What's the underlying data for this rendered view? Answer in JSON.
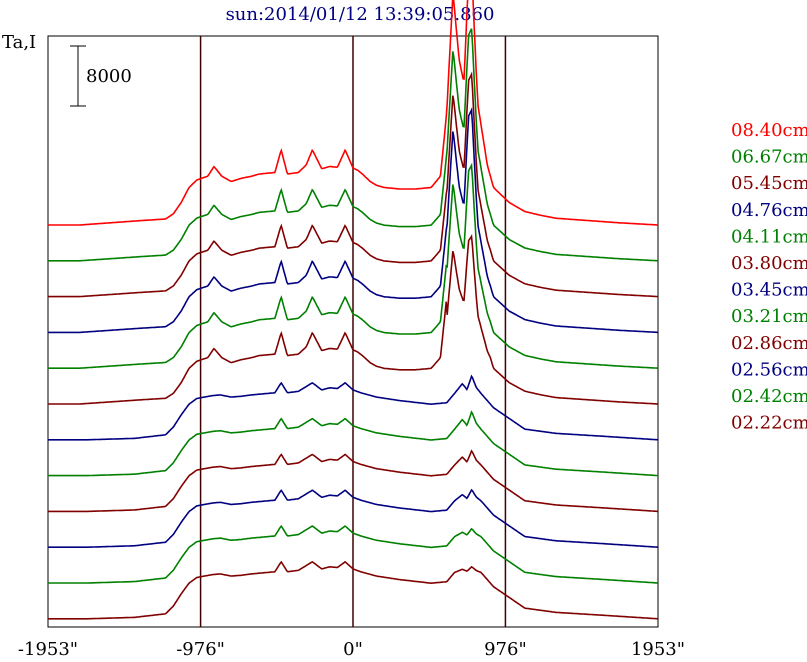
{
  "chart_data": {
    "type": "line",
    "title": "sun:2014/01/12 13:39:05.860",
    "ylabel": "Ta,I",
    "scale_bar_label": "8000",
    "x_tick_labels": [
      "-1953\"",
      "-976\"",
      "0\"",
      "976\"",
      "1953\""
    ],
    "x_ticks": [
      -1953,
      -976,
      0,
      976,
      1953
    ],
    "xlim": [
      -1953,
      1953
    ],
    "vertical_lines": [
      -976,
      0,
      976
    ],
    "grid": false,
    "legend_placement": "right",
    "series": [
      {
        "name": "08.40cm",
        "color": "#ff0000",
        "profile": "A"
      },
      {
        "name": "06.67cm",
        "color": "#008000",
        "profile": "A"
      },
      {
        "name": "05.45cm",
        "color": "#800000",
        "profile": "A"
      },
      {
        "name": "04.76cm",
        "color": "#000080",
        "profile": "A"
      },
      {
        "name": "04.11cm",
        "color": "#008000",
        "profile": "A"
      },
      {
        "name": "03.80cm",
        "color": "#800000",
        "profile": "A"
      },
      {
        "name": "03.45cm",
        "color": "#000080",
        "profile": "B"
      },
      {
        "name": "03.21cm",
        "color": "#008000",
        "profile": "B"
      },
      {
        "name": "02.86cm",
        "color": "#800000",
        "profile": "B"
      },
      {
        "name": "02.56cm",
        "color": "#000080",
        "profile": "B"
      },
      {
        "name": "02.42cm",
        "color": "#008000",
        "profile": "B"
      },
      {
        "name": "02.22cm",
        "color": "#800000",
        "profile": "B"
      }
    ],
    "profiles": {
      "A": {
        "x": [
          -1953,
          -1750,
          -1550,
          -1350,
          -1200,
          -1150,
          -1100,
          -1050,
          -1000,
          -960,
          -930,
          -890,
          -840,
          -780,
          -720,
          -650,
          -600,
          -500,
          -460,
          -420,
          -350,
          -300,
          -260,
          -200,
          -150,
          -100,
          -50,
          0,
          30,
          60,
          110,
          150,
          200,
          300,
          400,
          500,
          560,
          600,
          640,
          680,
          710,
          740,
          760,
          790,
          800,
          830,
          860,
          900,
          1000,
          1100,
          1200,
          1300,
          1500,
          1700,
          1953
        ],
        "y": [
          0,
          0,
          300,
          600,
          800,
          1500,
          3000,
          5000,
          6000,
          6300,
          6500,
          7800,
          6500,
          5800,
          6200,
          6500,
          6800,
          7000,
          10000,
          6800,
          7000,
          8000,
          10000,
          7500,
          7800,
          7700,
          10000,
          7600,
          7300,
          6800,
          5800,
          5300,
          5000,
          4800,
          4800,
          5000,
          6500,
          15000,
          31000,
          22000,
          19000,
          33000,
          34000,
          20000,
          16000,
          12000,
          8000,
          5000,
          3000,
          1800,
          1300,
          900,
          600,
          300,
          0
        ]
      },
      "B": {
        "x": [
          -1953,
          -1700,
          -1400,
          -1200,
          -1150,
          -1100,
          -1050,
          -1000,
          -950,
          -900,
          -850,
          -780,
          -720,
          -650,
          -550,
          -500,
          -460,
          -420,
          -350,
          -260,
          -200,
          -150,
          -100,
          -50,
          0,
          50,
          150,
          300,
          500,
          600,
          650,
          700,
          730,
          760,
          790,
          820,
          900,
          1000,
          1100,
          1300,
          1600,
          1953
        ],
        "y": [
          0,
          0,
          200,
          700,
          1800,
          3500,
          5000,
          5800,
          6000,
          6200,
          6300,
          6000,
          6100,
          6300,
          6500,
          6600,
          8000,
          6600,
          6800,
          8000,
          7000,
          7300,
          7200,
          8000,
          7000,
          6600,
          6000,
          5500,
          5000,
          5200,
          6500,
          9000,
          7500,
          11000,
          8000,
          6500,
          4500,
          3000,
          1500,
          900,
          500,
          0
        ]
      }
    },
    "peak_scale": [
      1.0,
      0.95,
      0.9,
      0.9,
      0.8,
      0.62,
      0.55,
      0.55,
      0.45,
      0.35,
      0.25,
      0.18
    ]
  }
}
